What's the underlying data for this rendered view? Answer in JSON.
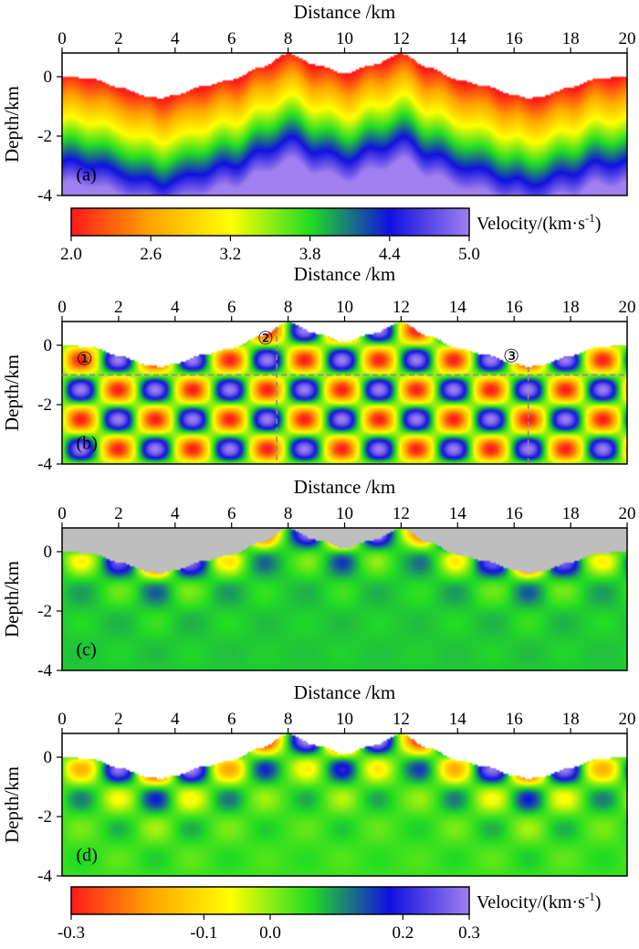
{
  "figure": {
    "x_axis_title": "Distance /km",
    "y_axis_title": "Depth/km",
    "colorbar_title": "Velocity/(km·s",
    "colorbar_title_sup": "-1",
    "colorbar_title_close": ")"
  },
  "chart_data": [
    {
      "type": "heatmap",
      "panel": "(a)",
      "xlabel": "Distance /km",
      "ylabel": "Depth/km",
      "xlim": [
        0,
        20
      ],
      "ylim": [
        -4,
        0.8
      ],
      "xticks": [
        "0",
        "2",
        "4",
        "6",
        "8",
        "10",
        "12",
        "14",
        "16",
        "18",
        "20"
      ],
      "yticks": [
        "0",
        "-2",
        "-4"
      ],
      "topography": {
        "x": [
          0,
          1,
          2,
          3,
          3.5,
          4,
          5,
          6,
          7,
          8,
          9,
          10,
          11,
          12,
          13,
          14,
          15,
          16,
          16.5,
          17,
          18,
          19,
          20
        ],
        "z": [
          0.0,
          -0.05,
          -0.35,
          -0.65,
          -0.72,
          -0.62,
          -0.32,
          -0.1,
          0.3,
          0.78,
          0.4,
          0.12,
          0.4,
          0.78,
          0.3,
          -0.1,
          -0.32,
          -0.62,
          -0.72,
          -0.65,
          -0.35,
          -0.05,
          0.0
        ]
      },
      "field": "background velocity, increasing with depth below topography",
      "colorbar": {
        "ticks": [
          "2.0",
          "2.6",
          "3.2",
          "3.8",
          "4.4",
          "5.0"
        ],
        "range": [
          2.0,
          5.0
        ],
        "colors": [
          "#ff1a1a",
          "#ffa500",
          "#ffff00",
          "#22dd22",
          "#1010e0",
          "#a07ff0"
        ]
      }
    },
    {
      "type": "heatmap",
      "panel": "(b)",
      "xlabel": "Distance /km",
      "ylabel": "Depth/km",
      "xlim": [
        0,
        20
      ],
      "ylim": [
        -4,
        0.8
      ],
      "xticks": [
        "0",
        "2",
        "4",
        "6",
        "8",
        "10",
        "12",
        "14",
        "16",
        "18",
        "20"
      ],
      "yticks": [
        "0",
        "-2",
        "-4"
      ],
      "field": "checkerboard velocity perturbation",
      "checkerboard": {
        "cell_width_km": 1.32,
        "cell_height_km": 1.0,
        "amplitude": 0.3
      },
      "markers": [
        {
          "label": "①",
          "x": 0.8,
          "z": -0.45
        },
        {
          "label": "②",
          "x": 7.2,
          "z": 0.25
        },
        {
          "label": "③",
          "x": 15.9,
          "z": -0.35
        }
      ],
      "dashed_profiles": {
        "horizontal_depth_km": -1.0,
        "vertical_x_km": [
          7.6,
          16.5
        ]
      }
    },
    {
      "type": "heatmap",
      "panel": "(c)",
      "xlabel": "Distance /km",
      "ylabel": "Depth/km",
      "xlim": [
        0,
        20
      ],
      "ylim": [
        -4,
        0.8
      ],
      "xticks": [
        "0",
        "2",
        "4",
        "6",
        "8",
        "10",
        "12",
        "14",
        "16",
        "18",
        "20"
      ],
      "yticks": [
        "0",
        "-2",
        "-4"
      ],
      "field": "recovered velocity perturbation, method 1",
      "masked_region_color": "#bebebe"
    },
    {
      "type": "heatmap",
      "panel": "(d)",
      "xlabel": "Distance /km",
      "ylabel": "Depth/km",
      "xlim": [
        0,
        20
      ],
      "ylim": [
        -4,
        0.8
      ],
      "xticks": [
        "0",
        "2",
        "4",
        "6",
        "8",
        "10",
        "12",
        "14",
        "16",
        "18",
        "20"
      ],
      "yticks": [
        "0",
        "-2",
        "-4"
      ],
      "field": "recovered velocity perturbation, method 2",
      "colorbar": {
        "ticks": [
          "-0.3",
          "-0.1",
          "0.0",
          "0.2",
          "0.3"
        ],
        "tick_values": [
          -0.3,
          -0.1,
          0.0,
          0.2,
          0.3
        ],
        "range": [
          -0.3,
          0.3
        ],
        "colors": [
          "#ff1a1a",
          "#ffa500",
          "#ffff00",
          "#22dd22",
          "#1010e0",
          "#a07ff0"
        ]
      }
    }
  ]
}
